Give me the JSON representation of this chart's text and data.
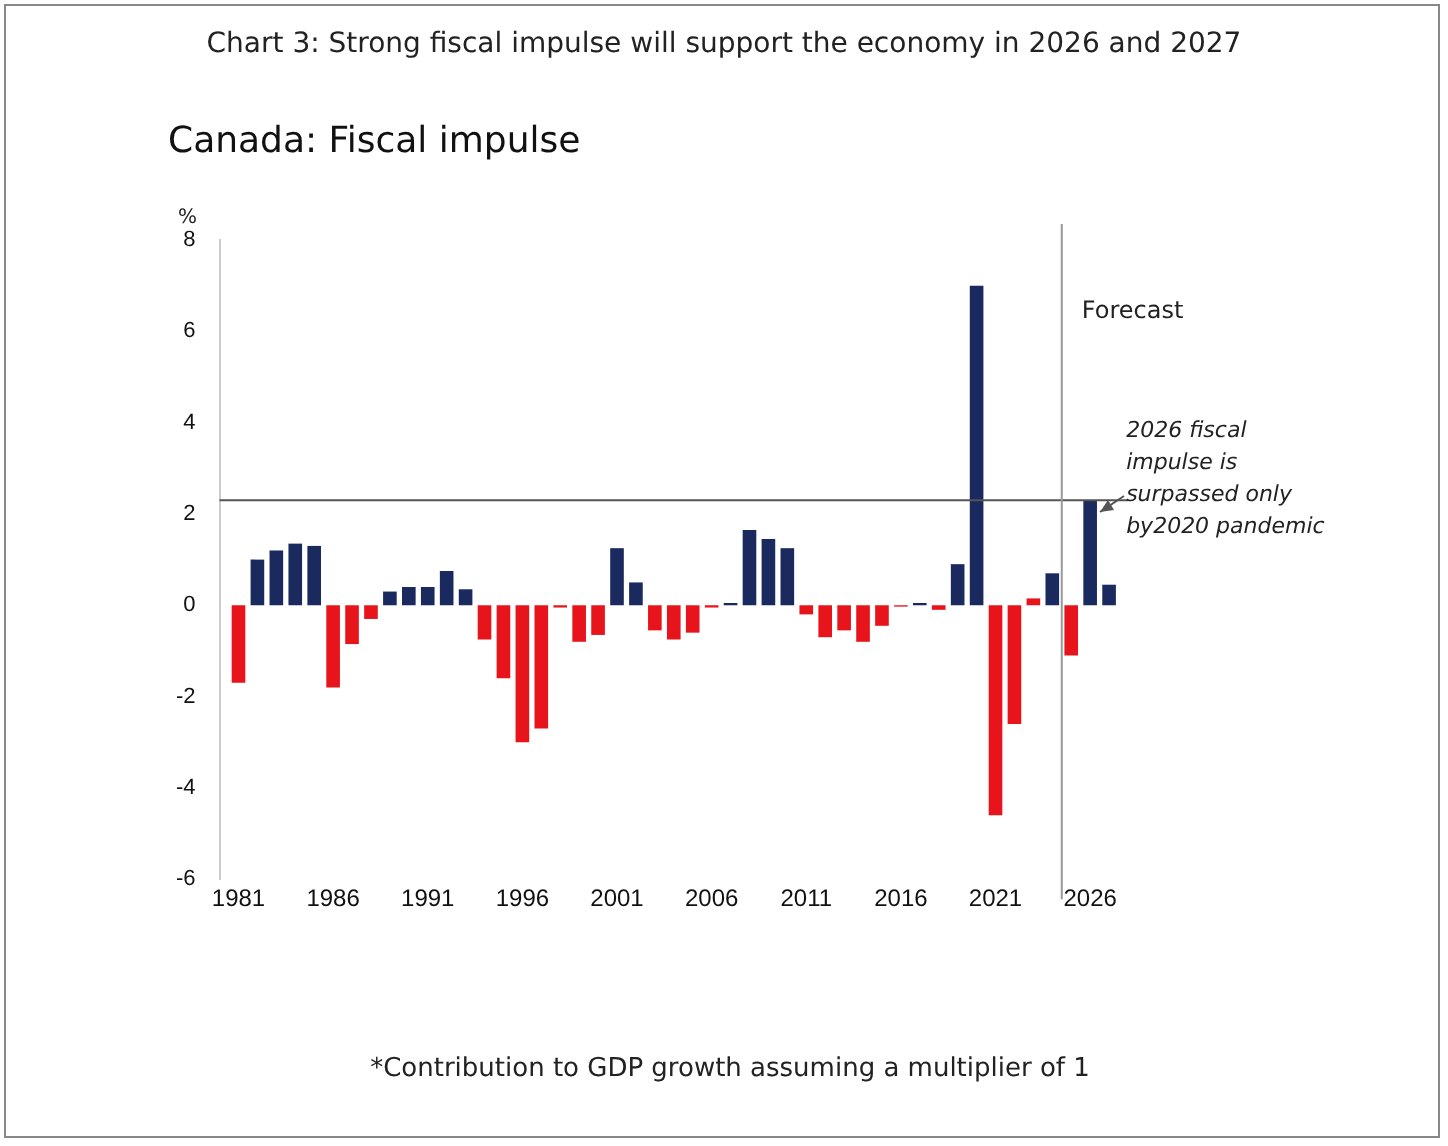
{
  "chart_data": {
    "type": "bar",
    "title": "Chart 3: Strong fiscal impulse will support the economy in 2026 and 2027",
    "subtitle": "Canada: Fiscal impulse",
    "ylabel": "%",
    "x": [
      1981,
      1982,
      1983,
      1984,
      1985,
      1986,
      1987,
      1988,
      1989,
      1990,
      1991,
      1992,
      1993,
      1994,
      1995,
      1996,
      1997,
      1998,
      1999,
      2000,
      2001,
      2002,
      2003,
      2004,
      2005,
      2006,
      2007,
      2008,
      2009,
      2010,
      2011,
      2012,
      2013,
      2014,
      2015,
      2016,
      2017,
      2018,
      2019,
      2020,
      2021,
      2022,
      2023,
      2024,
      2025,
      2026,
      2027
    ],
    "values": [
      -1.7,
      1.0,
      1.2,
      1.35,
      1.3,
      -1.8,
      -0.85,
      -0.3,
      0.3,
      0.4,
      0.4,
      0.75,
      0.35,
      -0.75,
      -1.6,
      -3.0,
      -2.7,
      -0.05,
      -0.8,
      -0.65,
      1.25,
      0.5,
      -0.55,
      -0.75,
      -0.6,
      -0.05,
      0.05,
      1.65,
      1.45,
      1.25,
      -0.2,
      -0.7,
      -0.55,
      -0.8,
      -0.45,
      -0.03,
      0.05,
      -0.1,
      0.9,
      7.0,
      -4.6,
      -2.6,
      0.15,
      0.7,
      -1.1,
      2.3,
      0.45
    ],
    "colors": [
      "#e8141c",
      "#1b2a5e",
      "#1b2a5e",
      "#1b2a5e",
      "#1b2a5e",
      "#e8141c",
      "#e8141c",
      "#e8141c",
      "#1b2a5e",
      "#1b2a5e",
      "#1b2a5e",
      "#1b2a5e",
      "#1b2a5e",
      "#e8141c",
      "#e8141c",
      "#e8141c",
      "#e8141c",
      "#e8141c",
      "#e8141c",
      "#e8141c",
      "#1b2a5e",
      "#1b2a5e",
      "#e8141c",
      "#e8141c",
      "#e8141c",
      "#e8141c",
      "#1b2a5e",
      "#1b2a5e",
      "#1b2a5e",
      "#1b2a5e",
      "#e8141c",
      "#e8141c",
      "#e8141c",
      "#e8141c",
      "#e8141c",
      "#e8141c",
      "#1b2a5e",
      "#e8141c",
      "#1b2a5e",
      "#1b2a5e",
      "#e8141c",
      "#e8141c",
      "#e8141c",
      "#1b2a5e",
      "#e8141c",
      "#1b2a5e",
      "#1b2a5e"
    ],
    "xlim": [
      1980,
      2028
    ],
    "xticks": [
      1981,
      1986,
      1991,
      1996,
      2001,
      2006,
      2011,
      2016,
      2021,
      2026
    ],
    "ylim": [
      -6,
      8
    ],
    "yticks": [
      -6,
      -4,
      -2,
      0,
      2,
      4,
      6,
      8
    ],
    "ref_lines": [
      {
        "axis": "y",
        "value": 2.3,
        "color": "#555555"
      },
      {
        "axis": "x",
        "value": 2024.5,
        "label": "Forecast",
        "color": "#999999"
      }
    ],
    "annotations": [
      {
        "text": "2026 fiscal impulse is surpassed only by2020 pandemic",
        "x": 2026,
        "y": 2.3
      },
      "*Contribution to GDP growth assuming a multiplier of 1"
    ],
    "grid": false,
    "legend": false
  }
}
